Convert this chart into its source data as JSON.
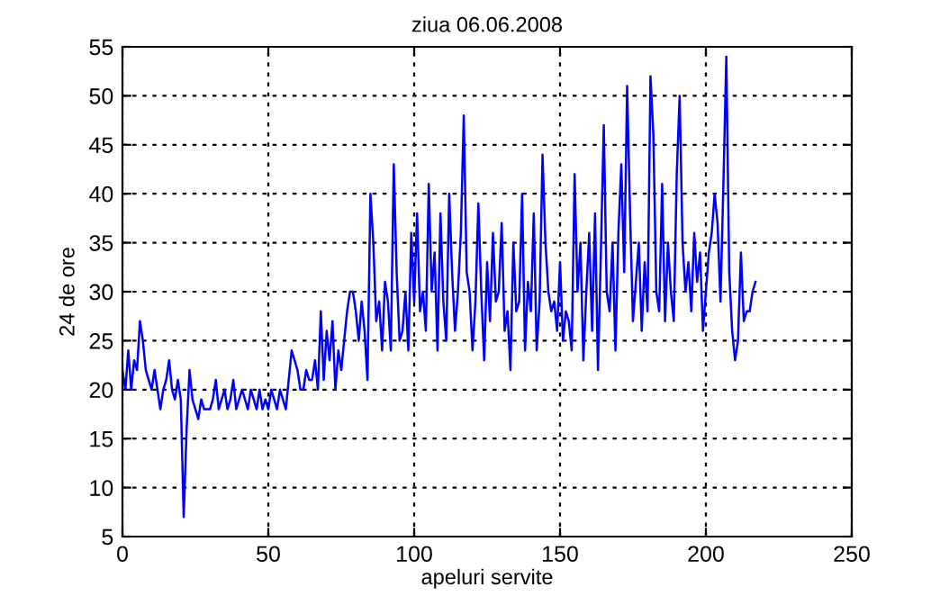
{
  "chart_data": {
    "type": "line",
    "title": "ziua 06.06.2008",
    "xlabel": "apeluri servite",
    "ylabel": "24 de ore",
    "x": [
      0,
      1,
      2,
      3,
      4,
      5,
      6,
      7,
      8,
      9,
      10,
      11,
      12,
      13,
      14,
      15,
      16,
      17,
      18,
      19,
      20,
      21,
      22,
      23,
      24,
      25,
      26,
      27,
      28,
      29,
      30,
      31,
      32,
      33,
      34,
      35,
      36,
      37,
      38,
      39,
      40,
      41,
      42,
      43,
      44,
      45,
      46,
      47,
      48,
      49,
      50,
      51,
      52,
      53,
      54,
      55,
      56,
      57,
      58,
      59,
      60,
      61,
      62,
      63,
      64,
      65,
      66,
      67,
      68,
      69,
      70,
      71,
      72,
      73,
      74,
      75,
      76,
      77,
      78,
      79,
      80,
      81,
      82,
      83,
      84,
      85,
      86,
      87,
      88,
      89,
      90,
      91,
      92,
      93,
      94,
      95,
      96,
      97,
      98,
      99,
      100,
      101,
      102,
      103,
      104,
      105,
      106,
      107,
      108,
      109,
      110,
      111,
      112,
      113,
      114,
      115,
      116,
      117,
      118,
      119,
      120,
      121,
      122,
      123,
      124,
      125,
      126,
      127,
      128,
      129,
      130,
      131,
      132,
      133,
      134,
      135,
      136,
      137,
      138,
      139,
      140,
      141,
      142,
      143,
      144,
      145,
      146,
      147,
      148,
      149,
      150,
      151,
      152,
      153,
      154,
      155,
      156,
      157,
      158,
      159,
      160,
      161,
      162,
      163,
      164,
      165,
      166,
      167,
      168,
      169,
      170,
      171,
      172,
      173,
      174,
      175,
      176,
      177,
      178,
      179,
      180,
      181,
      182,
      183,
      184,
      185,
      186,
      187,
      188,
      189,
      190,
      191,
      192,
      193,
      194,
      195,
      196,
      197,
      198,
      199,
      200,
      201,
      202,
      203,
      204,
      205,
      206,
      207,
      208,
      209,
      210,
      211,
      212,
      213,
      214,
      215,
      216,
      217
    ],
    "series": [
      {
        "color": "#0000ff",
        "values": [
          22,
          20,
          24,
          20,
          23,
          22,
          27,
          25,
          22,
          21,
          20,
          22,
          20,
          18,
          20,
          21,
          23,
          20,
          19,
          21,
          19,
          7,
          16,
          22,
          19,
          18,
          17,
          19,
          18,
          18,
          18,
          19,
          21,
          18,
          19,
          20,
          18,
          19,
          21,
          18,
          19,
          20,
          19,
          18,
          20,
          19,
          18,
          20,
          18,
          19,
          18,
          20,
          19,
          18,
          20,
          19,
          18,
          21,
          24,
          23,
          22,
          20,
          20,
          22,
          21,
          21,
          23,
          20,
          28,
          21,
          26,
          23,
          27,
          20,
          24,
          22,
          25,
          28,
          30,
          30,
          28,
          25,
          29,
          26,
          21,
          40,
          35,
          27,
          29,
          24,
          31,
          29,
          24,
          43,
          32,
          25,
          26,
          30,
          24,
          36,
          29,
          38,
          28,
          30,
          26,
          41,
          30,
          34,
          24,
          38,
          29,
          25,
          40,
          32,
          26,
          30,
          36,
          48,
          32,
          30,
          24,
          29,
          39,
          30,
          23,
          33,
          27,
          36,
          29,
          30,
          37,
          26,
          28,
          22,
          35,
          28,
          29,
          40,
          24,
          31,
          28,
          38,
          24,
          29,
          44,
          35,
          30,
          28,
          29,
          26,
          33,
          25,
          28,
          27,
          24,
          42,
          30,
          35,
          23,
          30,
          36,
          26,
          38,
          22,
          34,
          47,
          30,
          28,
          35,
          24,
          36,
          43,
          32,
          51,
          38,
          27,
          31,
          35,
          26,
          33,
          28,
          52,
          46,
          30,
          28,
          41,
          27,
          35,
          30,
          27,
          42,
          50,
          35,
          30,
          33,
          28,
          36,
          31,
          34,
          26,
          30,
          34,
          36,
          40,
          37,
          29,
          41,
          54,
          32,
          26,
          23,
          25,
          34,
          27,
          28,
          28,
          30,
          31
        ]
      }
    ],
    "xlim": [
      0,
      250
    ],
    "ylim": [
      5,
      55
    ],
    "xticks": [
      0,
      50,
      100,
      150,
      200,
      250
    ],
    "yticks": [
      5,
      10,
      15,
      20,
      25,
      30,
      35,
      40,
      45,
      50,
      55
    ],
    "grid": true,
    "line_style": "solid",
    "marker": "none"
  }
}
